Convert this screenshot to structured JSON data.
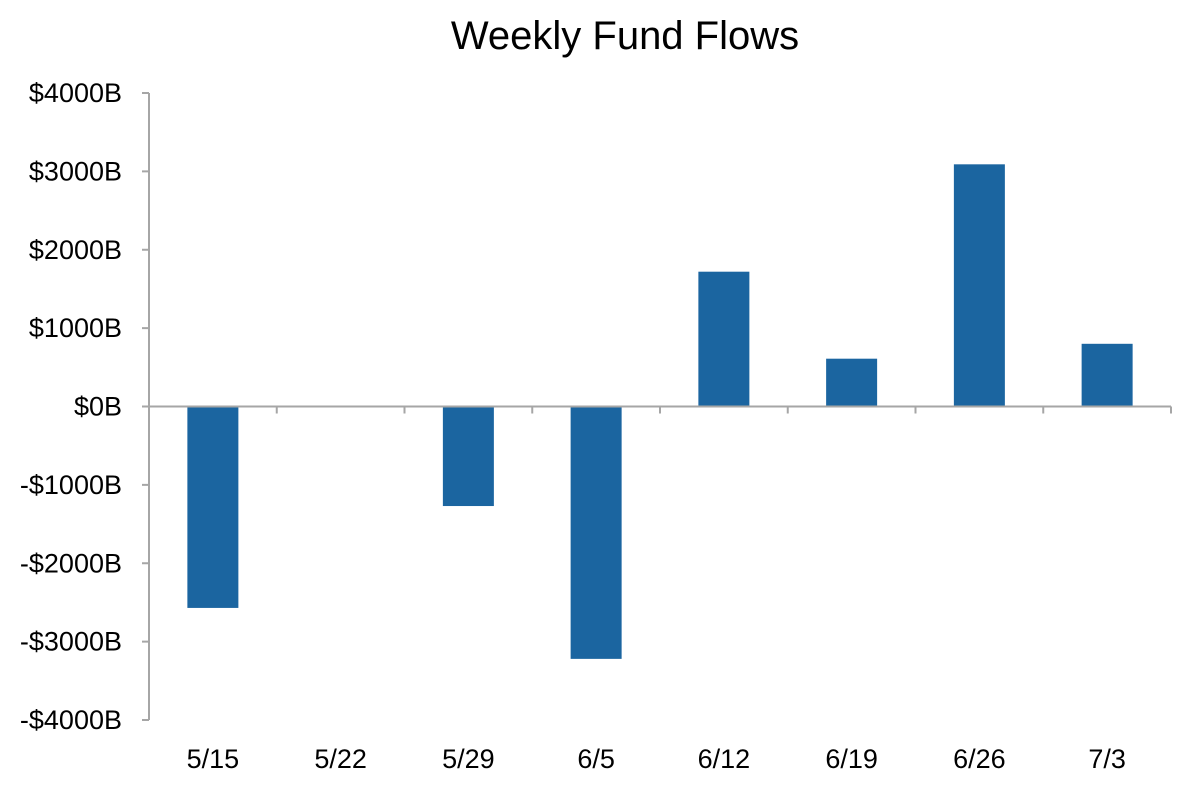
{
  "chart_data": {
    "type": "bar",
    "title": "Weekly Fund Flows",
    "xlabel": "",
    "ylabel": "",
    "categories": [
      "5/15",
      "5/22",
      "5/29",
      "6/5",
      "6/12",
      "6/19",
      "6/26",
      "7/3"
    ],
    "series": [
      {
        "values": [
          -2570,
          10,
          -1270,
          -3220,
          1720,
          610,
          3090,
          800
        ]
      }
    ],
    "ylim": [
      -4000,
      4000
    ],
    "yticks": [
      4000,
      3000,
      2000,
      1000,
      0,
      -1000,
      -2000,
      -3000,
      -4000
    ],
    "ytick_labels": [
      "$4000B",
      "$3000B",
      "$2000B",
      "$1000B",
      "$0B",
      "-$1000B",
      "-$2000B",
      "-$3000B",
      "-$4000B"
    ],
    "grid": false,
    "legend": "none",
    "bar_color": "#1b65a0",
    "axis_color": "#a6a6a6"
  }
}
